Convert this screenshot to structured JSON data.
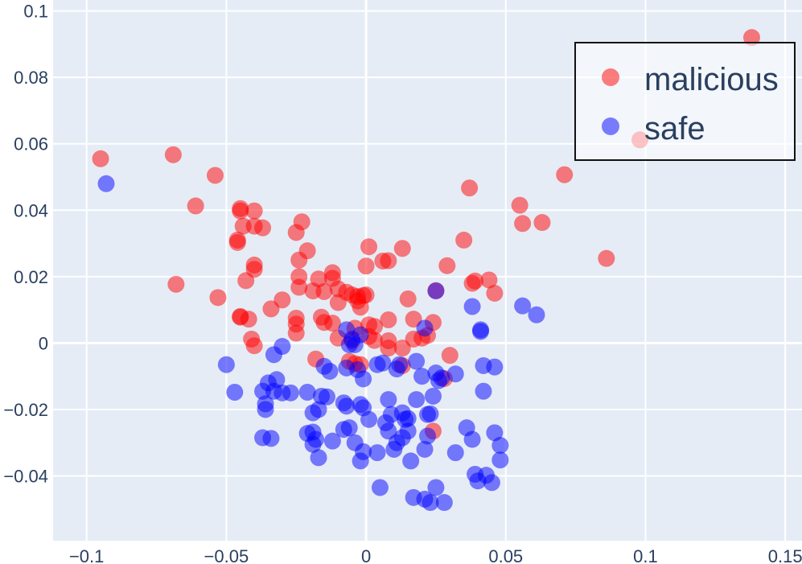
{
  "chart_data": {
    "type": "scatter",
    "title": "",
    "xlabel": "",
    "ylabel": "",
    "xlim": [
      -0.112,
      0.156
    ],
    "ylim": [
      -0.0595,
      0.1033
    ],
    "x_ticks": [
      {
        "value": -0.1,
        "label": "−0.1"
      },
      {
        "value": -0.05,
        "label": "−0.05"
      },
      {
        "value": 0,
        "label": "0"
      },
      {
        "value": 0.05,
        "label": "0.05"
      },
      {
        "value": 0.1,
        "label": "0.1"
      },
      {
        "value": 0.15,
        "label": "0.15"
      }
    ],
    "y_ticks": [
      {
        "value": 0.1,
        "label": "0.1"
      },
      {
        "value": 0.08,
        "label": "0.08"
      },
      {
        "value": 0.06,
        "label": "0.06"
      },
      {
        "value": 0.04,
        "label": "0.04"
      },
      {
        "value": 0.02,
        "label": "0.02"
      },
      {
        "value": 0,
        "label": "0"
      },
      {
        "value": -0.02,
        "label": "−0.02"
      },
      {
        "value": -0.04,
        "label": "−0.04"
      }
    ],
    "grid": true,
    "legend": {
      "position": "top-right"
    },
    "colors": {
      "background": "#e5ecf6",
      "grid": "#ffffff",
      "malicious": "#ff0000",
      "safe": "#0000ff"
    },
    "series": [
      {
        "name": "malicious",
        "color": "#ff0000",
        "opacity": 0.5,
        "points": [
          [
            -0.095,
            0.0555
          ],
          [
            -0.069,
            0.0567
          ],
          [
            -0.061,
            0.0413
          ],
          [
            -0.054,
            0.0505
          ],
          [
            -0.068,
            0.0177
          ],
          [
            -0.053,
            0.0137
          ],
          [
            -0.045,
            0.0405
          ],
          [
            -0.045,
            0.0398
          ],
          [
            -0.044,
            0.0352
          ],
          [
            -0.046,
            0.031
          ],
          [
            -0.046,
            0.0303
          ],
          [
            -0.04,
            0.0398
          ],
          [
            -0.04,
            0.0352
          ],
          [
            -0.037,
            0.0347
          ],
          [
            -0.025,
            0.0333
          ],
          [
            -0.023,
            0.0365
          ],
          [
            -0.021,
            0.0278
          ],
          [
            -0.024,
            0.025
          ],
          [
            -0.04,
            0.0235
          ],
          [
            -0.04,
            0.0222
          ],
          [
            -0.043,
            0.0188
          ],
          [
            -0.045,
            0.008
          ],
          [
            -0.045,
            0.0078
          ],
          [
            -0.042,
            0.0072
          ],
          [
            -0.034,
            0.0103
          ],
          [
            -0.03,
            0.013
          ],
          [
            -0.025,
            0.0075
          ],
          [
            -0.025,
            0.0057
          ],
          [
            -0.025,
            0.003
          ],
          [
            -0.041,
            0.0012
          ],
          [
            -0.04,
            -0.0008
          ],
          [
            -0.024,
            0.02
          ],
          [
            -0.024,
            0.0168
          ],
          [
            -0.019,
            0.0157
          ],
          [
            -0.017,
            0.0193
          ],
          [
            -0.015,
            0.0155
          ],
          [
            -0.012,
            0.0212
          ],
          [
            -0.012,
            0.0195
          ],
          [
            -0.01,
            0.0163
          ],
          [
            -0.01,
            0.0122
          ],
          [
            -0.007,
            0.0153
          ],
          [
            -0.005,
            0.0145
          ],
          [
            -0.003,
            0.014
          ],
          [
            -0.003,
            0.0127
          ],
          [
            -0.001,
            0.0143
          ],
          [
            -0.002,
            0.0108
          ],
          [
            -0.016,
            0.0078
          ],
          [
            -0.015,
            0.0062
          ],
          [
            -0.012,
            0.006
          ],
          [
            -0.01,
            0.0015
          ],
          [
            -0.005,
            0.0007
          ],
          [
            -0.004,
            0.0045
          ],
          [
            0.001,
            0.0055
          ],
          [
            0.003,
            0.005
          ],
          [
            0.008,
            0.007
          ],
          [
            0.001,
            0.002
          ],
          [
            0.003,
            0.0008
          ],
          [
            0.008,
            0.0007
          ],
          [
            0.008,
            -0.0015
          ],
          [
            -0.006,
            -0.0055
          ],
          [
            -0.004,
            -0.0062
          ],
          [
            -0.002,
            -0.0065
          ],
          [
            -0.018,
            -0.0048
          ],
          [
            0.001,
            0.029
          ],
          [
            0.006,
            0.0247
          ],
          [
            0.008,
            0.0248
          ],
          [
            0.013,
            0.0285
          ],
          [
            0.0,
            0.0232
          ],
          [
            0.0,
            0.0145
          ],
          [
            0.015,
            0.0133
          ],
          [
            0.017,
            0.0072
          ],
          [
            0.013,
            -0.0015
          ],
          [
            0.013,
            -0.0068
          ],
          [
            0.02,
            0.0015
          ],
          [
            0.022,
            0.0023
          ],
          [
            0.024,
            0.0062
          ],
          [
            0.017,
            0.0012
          ],
          [
            0.025,
            0.0158
          ],
          [
            0.029,
            0.0233
          ],
          [
            0.035,
            0.031
          ],
          [
            0.037,
            0.0467
          ],
          [
            0.038,
            0.018
          ],
          [
            0.039,
            0.0187
          ],
          [
            0.044,
            0.019
          ],
          [
            0.046,
            0.015
          ],
          [
            0.03,
            -0.0037
          ],
          [
            0.028,
            -0.0107
          ],
          [
            0.055,
            0.0415
          ],
          [
            0.056,
            0.036
          ],
          [
            0.063,
            0.0363
          ],
          [
            0.071,
            0.0507
          ],
          [
            0.086,
            0.0255
          ],
          [
            0.098,
            0.0612
          ],
          [
            0.138,
            0.092
          ],
          [
            0.024,
            -0.0265
          ]
        ]
      },
      {
        "name": "safe",
        "color": "#0000ff",
        "opacity": 0.5,
        "points": [
          [
            -0.093,
            0.048
          ],
          [
            -0.05,
            -0.0065
          ],
          [
            -0.047,
            -0.0148
          ],
          [
            -0.033,
            -0.0035
          ],
          [
            -0.03,
            -0.001
          ],
          [
            -0.035,
            -0.012
          ],
          [
            -0.032,
            -0.011
          ],
          [
            -0.037,
            -0.0145
          ],
          [
            -0.036,
            -0.0183
          ],
          [
            -0.036,
            -0.02
          ],
          [
            -0.033,
            -0.0145
          ],
          [
            -0.03,
            -0.015
          ],
          [
            -0.027,
            -0.015
          ],
          [
            -0.037,
            -0.0285
          ],
          [
            -0.034,
            -0.0287
          ],
          [
            -0.021,
            -0.0148
          ],
          [
            -0.019,
            -0.021
          ],
          [
            -0.021,
            -0.0272
          ],
          [
            -0.019,
            -0.0268
          ],
          [
            -0.018,
            -0.029
          ],
          [
            -0.019,
            -0.0305
          ],
          [
            -0.017,
            -0.0345
          ],
          [
            -0.016,
            -0.016
          ],
          [
            -0.014,
            -0.0162
          ],
          [
            -0.015,
            -0.007
          ],
          [
            -0.013,
            -0.0085
          ],
          [
            -0.017,
            -0.02
          ],
          [
            -0.012,
            -0.0295
          ],
          [
            -0.008,
            -0.018
          ],
          [
            -0.007,
            -0.019
          ],
          [
            -0.008,
            -0.026
          ],
          [
            -0.006,
            -0.0255
          ],
          [
            -0.002,
            -0.0185
          ],
          [
            -0.001,
            -0.0195
          ],
          [
            -0.003,
            -0.008
          ],
          [
            -0.007,
            -0.0075
          ],
          [
            -0.001,
            -0.0108
          ],
          [
            -0.007,
            0.004
          ],
          [
            -0.005,
            0.0012
          ],
          [
            -0.006,
            -0.0005
          ],
          [
            -0.004,
            -0.0005
          ],
          [
            -0.002,
            0.0025
          ],
          [
            -0.004,
            -0.03
          ],
          [
            -0.001,
            -0.0327
          ],
          [
            -0.002,
            -0.0355
          ],
          [
            0.001,
            -0.023
          ],
          [
            0.004,
            -0.0065
          ],
          [
            0.006,
            -0.006
          ],
          [
            0.004,
            -0.033
          ],
          [
            0.005,
            -0.0435
          ],
          [
            0.007,
            -0.024
          ],
          [
            0.008,
            -0.017
          ],
          [
            0.008,
            -0.0265
          ],
          [
            0.009,
            -0.0215
          ],
          [
            0.01,
            -0.032
          ],
          [
            0.011,
            -0.03
          ],
          [
            0.011,
            -0.0078
          ],
          [
            0.012,
            -0.0065
          ],
          [
            0.013,
            -0.0285
          ],
          [
            0.013,
            -0.021
          ],
          [
            0.014,
            -0.023
          ],
          [
            0.015,
            -0.0227
          ],
          [
            0.015,
            -0.0265
          ],
          [
            0.016,
            -0.0355
          ],
          [
            0.017,
            -0.0465
          ],
          [
            0.018,
            -0.0055
          ],
          [
            0.018,
            -0.017
          ],
          [
            0.02,
            -0.01
          ],
          [
            0.021,
            -0.032
          ],
          [
            0.021,
            -0.047
          ],
          [
            0.022,
            -0.0215
          ],
          [
            0.022,
            -0.028
          ],
          [
            0.023,
            -0.0213
          ],
          [
            0.023,
            -0.048
          ],
          [
            0.024,
            -0.016
          ],
          [
            0.025,
            -0.009
          ],
          [
            0.025,
            -0.0435
          ],
          [
            0.026,
            -0.0113
          ],
          [
            0.027,
            -0.0105
          ],
          [
            0.028,
            -0.048
          ],
          [
            0.021,
            0.0045
          ],
          [
            0.025,
            0.0157
          ],
          [
            0.032,
            -0.0093
          ],
          [
            0.032,
            -0.033
          ],
          [
            0.036,
            -0.0255
          ],
          [
            0.038,
            0.011
          ],
          [
            0.038,
            -0.029
          ],
          [
            0.039,
            -0.0395
          ],
          [
            0.041,
            0.004
          ],
          [
            0.041,
            0.0035
          ],
          [
            0.04,
            -0.0415
          ],
          [
            0.042,
            -0.0068
          ],
          [
            0.042,
            -0.0145
          ],
          [
            0.043,
            -0.0398
          ],
          [
            0.045,
            -0.042
          ],
          [
            0.046,
            -0.0072
          ],
          [
            0.046,
            -0.027
          ],
          [
            0.048,
            -0.0308
          ],
          [
            0.048,
            -0.0352
          ],
          [
            0.056,
            0.0112
          ],
          [
            0.061,
            0.0085
          ]
        ]
      }
    ]
  }
}
